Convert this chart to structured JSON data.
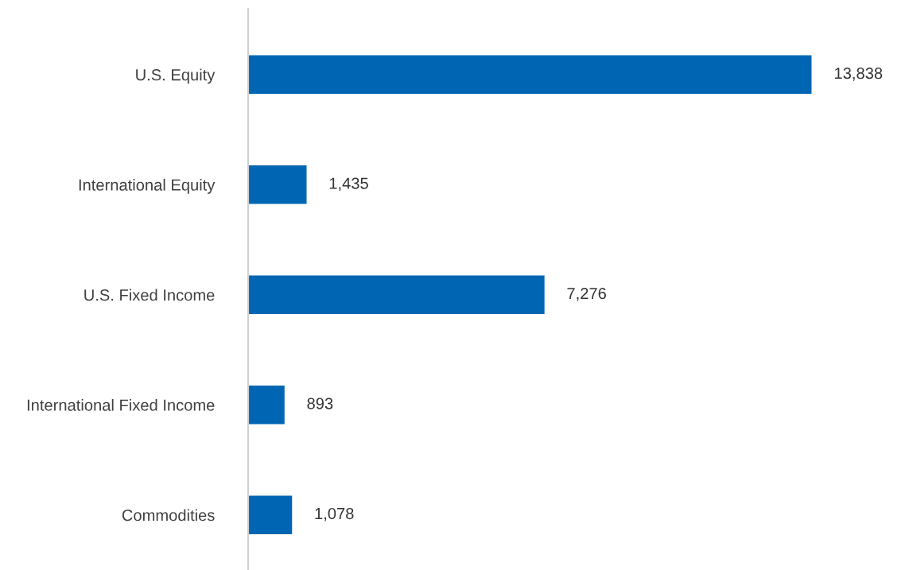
{
  "chart_data": {
    "type": "bar",
    "orientation": "horizontal",
    "categories": [
      "U.S. Equity",
      "International Equity",
      "U.S. Fixed Income",
      "International Fixed Income",
      "Commodities"
    ],
    "values": [
      13838,
      1435,
      7276,
      893,
      1078
    ],
    "value_labels": [
      "13,838",
      "1,435",
      "7,276",
      "893",
      "1,078"
    ],
    "color": "#0066b3",
    "grid": false,
    "legend": false,
    "tick_labels": "y"
  }
}
